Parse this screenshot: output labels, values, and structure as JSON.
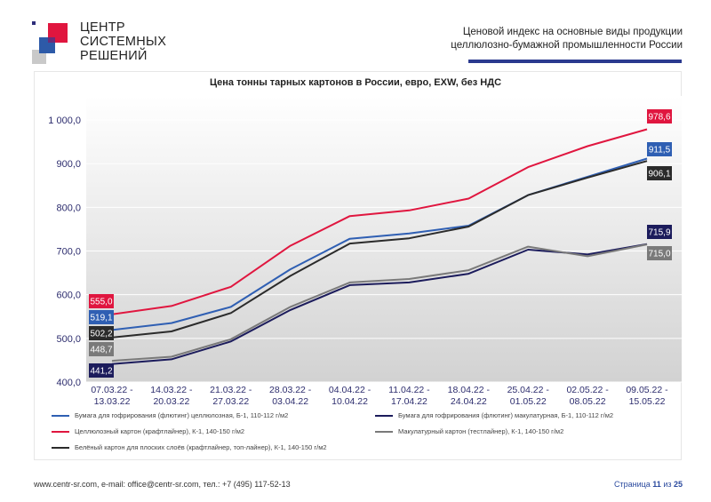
{
  "logo": {
    "line1": "ЦЕНТР",
    "line2": "СИСТЕМНЫХ",
    "line3": "РЕШЕНИЙ"
  },
  "header": {
    "line1": "Ценовой индекс на основные виды продукции",
    "line2": "целлюлозно-бумажной промышленности России"
  },
  "footer": {
    "contacts": "www.centr-sr.com, e-mail: office@centr-sr.com, тел.: +7 (495) 117-52-13",
    "page_prefix": "Страница",
    "page_current": "11",
    "page_sep": "из",
    "page_total": "25"
  },
  "chart_data": {
    "type": "line",
    "title": "Цена тонны тарных картонов в России, евро, EXW, без НДС",
    "categories": [
      [
        "07.03.22 -",
        "13.03.22"
      ],
      [
        "14.03.22 -",
        "20.03.22"
      ],
      [
        "21.03.22 -",
        "27.03.22"
      ],
      [
        "28.03.22 -",
        "03.04.22"
      ],
      [
        "04.04.22 -",
        "10.04.22"
      ],
      [
        "11.04.22 -",
        "17.04.22"
      ],
      [
        "18.04.22 -",
        "24.04.22"
      ],
      [
        "25.04.22 -",
        "01.05.22"
      ],
      [
        "02.05.22 -",
        "08.05.22"
      ],
      [
        "09.05.22 -",
        "15.05.22"
      ]
    ],
    "ylim": [
      400,
      1000
    ],
    "yticks": [
      400,
      500,
      600,
      700,
      800,
      900,
      1000
    ],
    "ytick_labels": [
      "400,0",
      "500,0",
      "600,0",
      "700,0",
      "800,0",
      "900,0",
      "1 000,0"
    ],
    "grid": true,
    "legend_position": "bottom",
    "series": [
      {
        "name": "Бумага для гофрирования (флютинг) целлюлозная, Б-1, 110-112 г/м2",
        "color": "#2f5fb3",
        "values": [
          519.1,
          535,
          572,
          658,
          728,
          740,
          758,
          828,
          870,
          911.5
        ],
        "first_label": "519,1",
        "last_label": "911,5"
      },
      {
        "name": "Бумага для гофрирования (флютинг) макулатурная, Б-1, 110-112 г/м2",
        "color": "#1c1c5c",
        "values": [
          441.2,
          452,
          493,
          565,
          622,
          628,
          648,
          703,
          692,
          715.9
        ],
        "first_label": "441,2",
        "last_label": "715,9"
      },
      {
        "name": "Целлюлозный картон (крафтлайнер), К-1, 140-150 г/м2",
        "color": "#e0163f",
        "values": [
          555.0,
          574,
          618,
          712,
          780,
          793,
          820,
          892,
          940,
          978.6
        ],
        "first_label": "555,0",
        "last_label": "978,6"
      },
      {
        "name": "Макулатурный картон (тестлайнер), К-1, 140-150 г/м2",
        "color": "#7a7a7a",
        "values": [
          448.7,
          458,
          498,
          572,
          628,
          636,
          656,
          710,
          688,
          715.0
        ],
        "first_label": "448,7",
        "last_label": "715,0"
      },
      {
        "name": "Белёный картон для плоских слоёв (крафтлайнер, топ-лайнер), К-1, 140-150 г/м2",
        "color": "#2b2b2b",
        "values": [
          502.2,
          516,
          558,
          643,
          717,
          729,
          756,
          828,
          868,
          906.1
        ],
        "first_label": "502,2",
        "last_label": "906,1"
      }
    ]
  }
}
